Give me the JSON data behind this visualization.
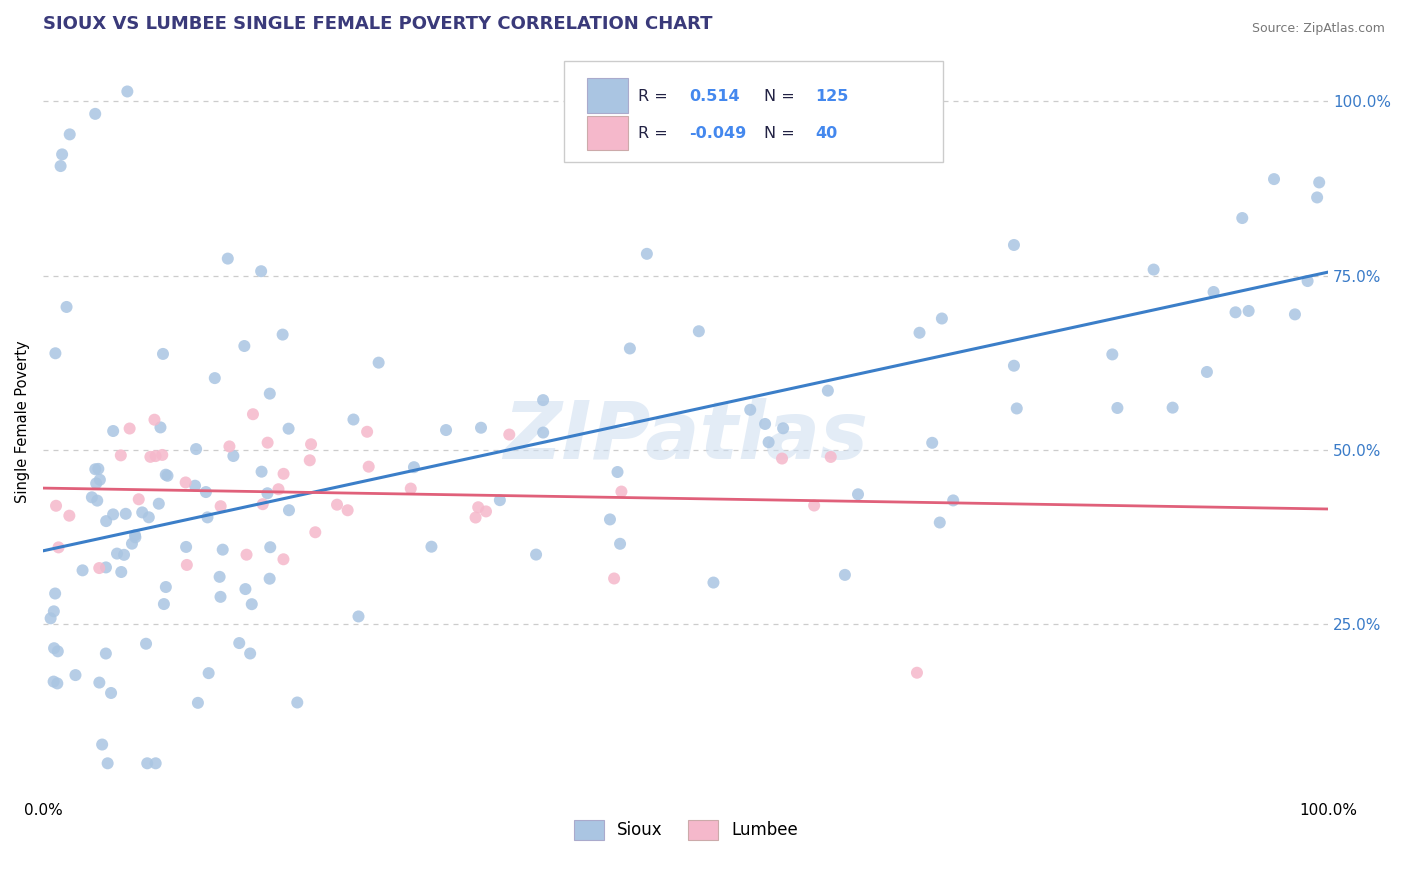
{
  "title": "SIOUX VS LUMBEE SINGLE FEMALE POVERTY CORRELATION CHART",
  "source_text": "Source: ZipAtlas.com",
  "ylabel": "Single Female Poverty",
  "xlim": [
    0.0,
    1.0
  ],
  "ylim": [
    0.0,
    1.08
  ],
  "sioux_color": "#aac5e2",
  "lumbee_color": "#f5b8cb",
  "sioux_line_color": "#3b7ec8",
  "lumbee_line_color": "#e0607a",
  "sioux_R": 0.514,
  "sioux_N": 125,
  "lumbee_R": -0.049,
  "lumbee_N": 40,
  "grid_color": "#cccccc",
  "background_color": "#ffffff",
  "watermark": "ZIPatlas",
  "legend_val_color": "#4488ee",
  "legend_label_color": "#222244",
  "title_color": "#3a3a7a"
}
